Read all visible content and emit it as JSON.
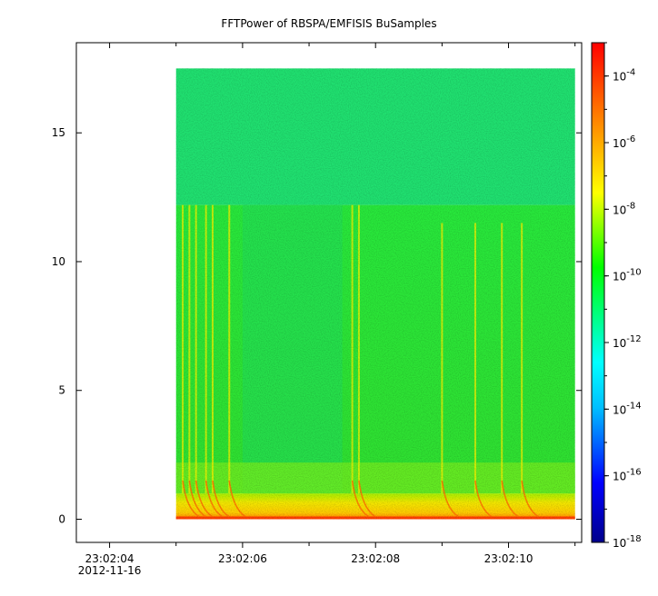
{
  "chart_data": {
    "type": "heatmap",
    "title": "FFTPower of RBSPA/EMFISIS  BuSamples",
    "xlabel": "",
    "ylabel": "",
    "x_axis": {
      "type": "time",
      "range": [
        "23:02:03.5",
        "23:02:11.1"
      ],
      "major_ticks": [
        {
          "time": "23:02:04",
          "label": "23:02:04"
        },
        {
          "time": "23:02:06",
          "label": "23:02:06"
        },
        {
          "time": "23:02:08",
          "label": "23:02:08"
        },
        {
          "time": "23:02:10",
          "label": "23:02:10"
        }
      ],
      "minor_ticks": [
        "23:02:05",
        "23:02:07",
        "23:02:09",
        "23:02:11"
      ],
      "date_label": "2012-11-16"
    },
    "y_axis": {
      "range": [
        -0.9,
        18.5
      ],
      "ticks": [
        0,
        5,
        10,
        15
      ],
      "tick_labels": [
        "0",
        "5",
        "10",
        "15"
      ]
    },
    "data_extent": {
      "time_start": "23:02:05.0",
      "time_end": "23:02:11.0",
      "y_min": 0,
      "y_max": 17.5
    },
    "colorbar": {
      "scale": "log",
      "range": [
        1e-18,
        0.001
      ],
      "colors": [
        "#00008b",
        "#0000ff",
        "#00bfff",
        "#00ffff",
        "#00ff00",
        "#ffff00",
        "#ff8000",
        "#ff0000"
      ],
      "tick_base": "10",
      "tick_exponents": [
        "-18",
        "-16",
        "-14",
        "-12",
        "-10",
        "-8",
        "-6",
        "-4"
      ]
    },
    "features": {
      "background_low_y_band": {
        "y_range": [
          0,
          1.0
        ],
        "power": 1e-07
      },
      "lower_band": {
        "y_range": [
          1.0,
          12.2
        ],
        "power": 1e-10
      },
      "upper_band": {
        "y_range": [
          12.2,
          17.5
        ],
        "power": 1e-12
      },
      "streaks_times": [
        "23:02:05.1",
        "23:02:05.2",
        "23:02:05.3",
        "23:02:05.45",
        "23:02:05.55",
        "23:02:05.8",
        "23:02:07.65",
        "23:02:07.75",
        "23:02:09.0",
        "23:02:09.5",
        "23:02:09.9",
        "23:02:10.2"
      ]
    }
  }
}
